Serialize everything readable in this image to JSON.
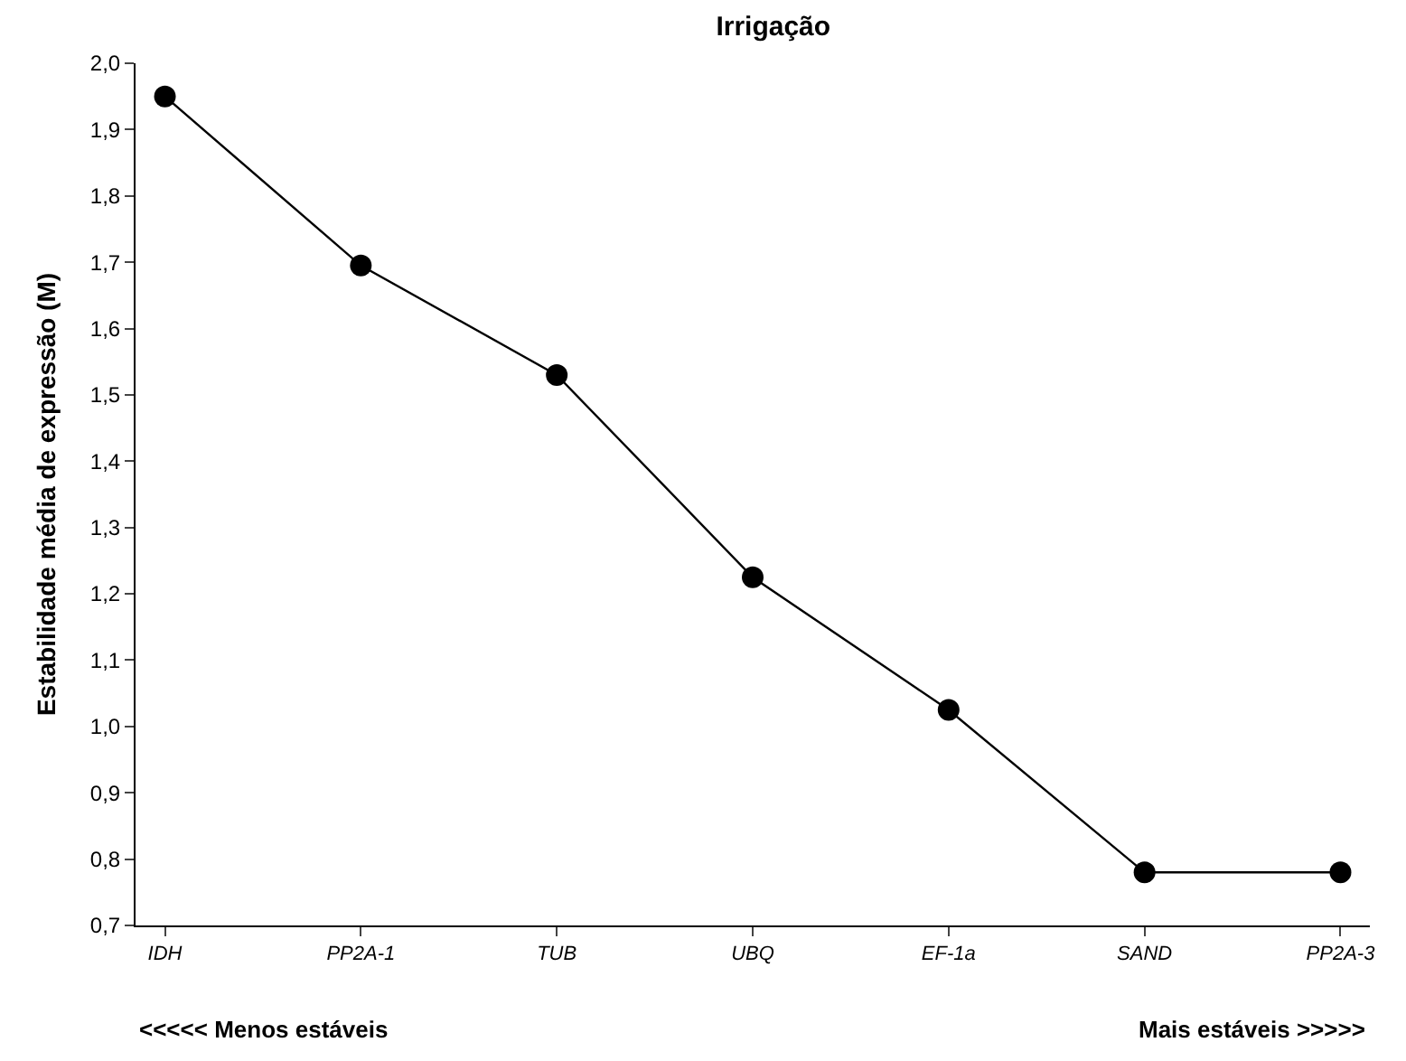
{
  "chart_data": {
    "type": "line",
    "title": "Irrigação",
    "ylabel": "Estabilidade média de expressão (M)",
    "categories": [
      "IDH",
      "PP2A-1",
      "TUB",
      "UBQ",
      "EF-1a",
      "SAND",
      "PP2A-3"
    ],
    "series": [
      {
        "color": "#000000",
        "values": [
          1.95,
          1.695,
          1.53,
          1.225,
          1.025,
          0.78,
          0.78
        ]
      }
    ],
    "ylim": [
      0.7,
      2.0
    ],
    "yticks": [
      {
        "value": 0.7,
        "label": "0,7"
      },
      {
        "value": 0.8,
        "label": "0,8"
      },
      {
        "value": 0.9,
        "label": "0,9"
      },
      {
        "value": 1.0,
        "label": "1,0"
      },
      {
        "value": 1.1,
        "label": "1,1"
      },
      {
        "value": 1.2,
        "label": "1,2"
      },
      {
        "value": 1.3,
        "label": "1,3"
      },
      {
        "value": 1.4,
        "label": "1,4"
      },
      {
        "value": 1.5,
        "label": "1,5"
      },
      {
        "value": 1.6,
        "label": "1,6"
      },
      {
        "value": 1.7,
        "label": "1,7"
      },
      {
        "value": 1.8,
        "label": "1,8"
      },
      {
        "value": 1.9,
        "label": "1,9"
      },
      {
        "value": 2.0,
        "label": "2,0"
      }
    ],
    "annotations": [
      "<<<<< Menos estáveis",
      "Mais estáveis >>>>>"
    ],
    "marker": "circle",
    "line_style": "solid"
  }
}
